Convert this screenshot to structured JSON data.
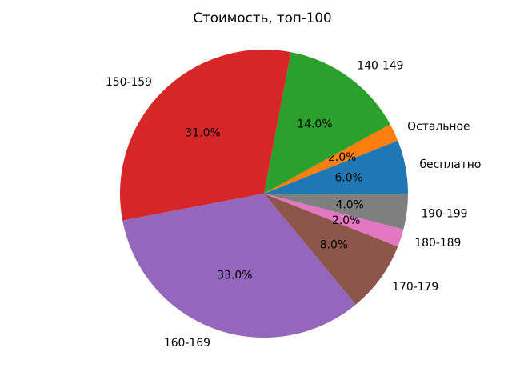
{
  "chart_data": {
    "type": "pie",
    "title": "Стоимость, топ-100",
    "background": "#ffffff",
    "text_color": "#000000",
    "start_angle_deg": 0,
    "direction": "counterclockwise",
    "label_radius_factor": 1.1,
    "pct_radius_factor": 0.6,
    "legend": "none",
    "slices": [
      {
        "label": "бесплатно",
        "value": 6.0,
        "pct_label": "6.0%",
        "color": "#1f77b4"
      },
      {
        "label": "Остальное",
        "value": 2.0,
        "pct_label": "2.0%",
        "color": "#ff7f0e"
      },
      {
        "label": "140-149",
        "value": 14.0,
        "pct_label": "14.0%",
        "color": "#2ca02c"
      },
      {
        "label": "150-159",
        "value": 31.0,
        "pct_label": "31.0%",
        "color": "#d62728"
      },
      {
        "label": "160-169",
        "value": 33.0,
        "pct_label": "33.0%",
        "color": "#9467bd"
      },
      {
        "label": "170-179",
        "value": 8.0,
        "pct_label": "8.0%",
        "color": "#8c564b"
      },
      {
        "label": "180-189",
        "value": 2.0,
        "pct_label": "2.0%",
        "color": "#e377c2"
      },
      {
        "label": "190-199",
        "value": 4.0,
        "pct_label": "4.0%",
        "color": "#7f7f7f"
      }
    ]
  }
}
